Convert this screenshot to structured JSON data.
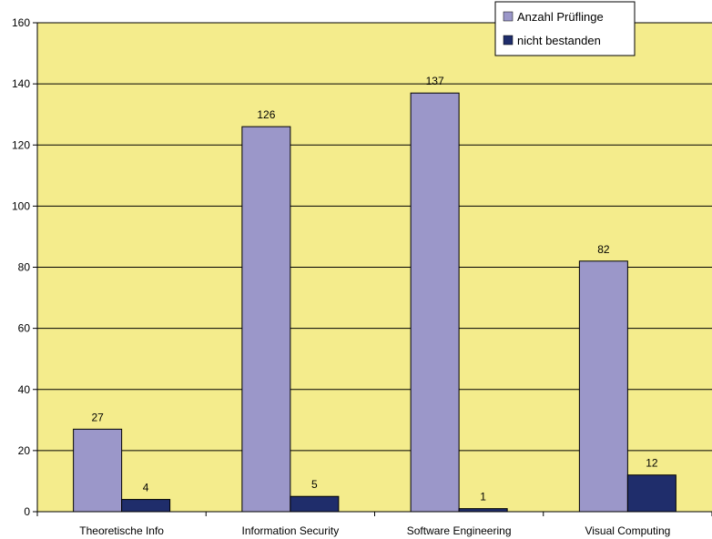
{
  "chart_data": {
    "type": "bar",
    "categories": [
      "Theoretische Info",
      "Information Security",
      "Software Engineering",
      "Visual Computing"
    ],
    "series": [
      {
        "name": "Anzahl Prüflinge",
        "values": [
          27,
          126,
          137,
          82
        ],
        "color": "#9b97c9"
      },
      {
        "name": "nicht bestanden",
        "values": [
          4,
          5,
          1,
          12
        ],
        "color": "#1f2d6b"
      }
    ],
    "ylim": [
      0,
      160
    ],
    "yticks": [
      0,
      20,
      40,
      60,
      80,
      100,
      120,
      140,
      160
    ],
    "grid": true,
    "legend_position": "top-right",
    "plot_background": "#f4ec8c"
  }
}
